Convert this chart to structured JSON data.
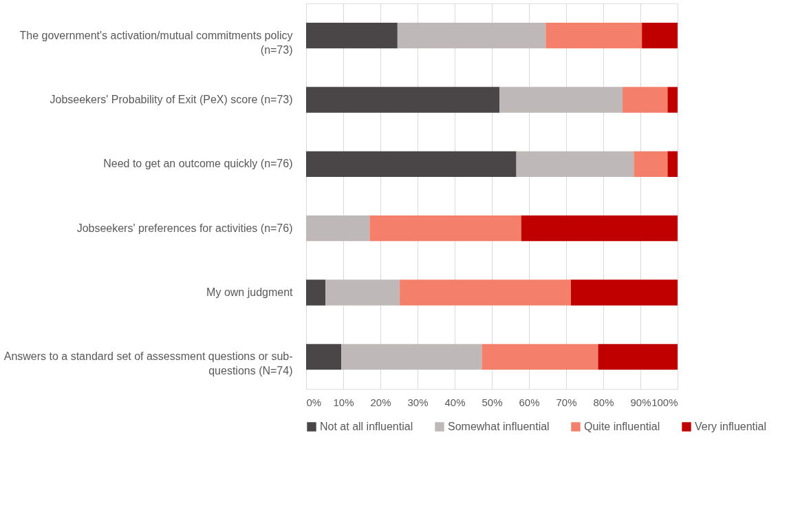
{
  "chart_data": {
    "type": "bar",
    "orientation": "horizontal",
    "stacked": true,
    "categories": [
      "The government's activation/mutual commitments policy (n=73)",
      "Jobseekers' Probability of Exit (PeX) score (n=73)",
      "Need to get an outcome quickly (n=76)",
      "Jobseekers' preferences for activities (n=76)",
      "My own judgment",
      "Answers to a standard set of assessment questions or sub-questions (N=74)"
    ],
    "series": [
      {
        "name": "Not at all influential",
        "color": "#4a4546",
        "values": [
          24.6,
          52.1,
          56.6,
          0,
          5.2,
          9.5
        ]
      },
      {
        "name": "Somewhat influential",
        "color": "#bfb8b8",
        "values": [
          39.9,
          33.1,
          31.6,
          17.1,
          20.0,
          37.8
        ]
      },
      {
        "name": "Quite influential",
        "color": "#f4806c",
        "values": [
          25.9,
          12.1,
          9.1,
          40.8,
          46.1,
          31.3
        ]
      },
      {
        "name": "Very influential",
        "color": "#c00000",
        "values": [
          9.6,
          2.7,
          2.7,
          42.1,
          28.7,
          21.4
        ]
      }
    ],
    "xlim": [
      0,
      100
    ],
    "xticks": [
      {
        "value": 0,
        "label": "0%"
      },
      {
        "value": 10,
        "label": "10%"
      },
      {
        "value": 20,
        "label": "20%"
      },
      {
        "value": 30,
        "label": "30%"
      },
      {
        "value": 40,
        "label": "40%"
      },
      {
        "value": 50,
        "label": "50%"
      },
      {
        "value": 60,
        "label": "60%"
      },
      {
        "value": 70,
        "label": "70%"
      },
      {
        "value": 80,
        "label": "80%"
      },
      {
        "value": 90,
        "label": "90%"
      },
      {
        "value": 100,
        "label": "100%"
      }
    ],
    "grid": "x",
    "legend": "bottom"
  }
}
